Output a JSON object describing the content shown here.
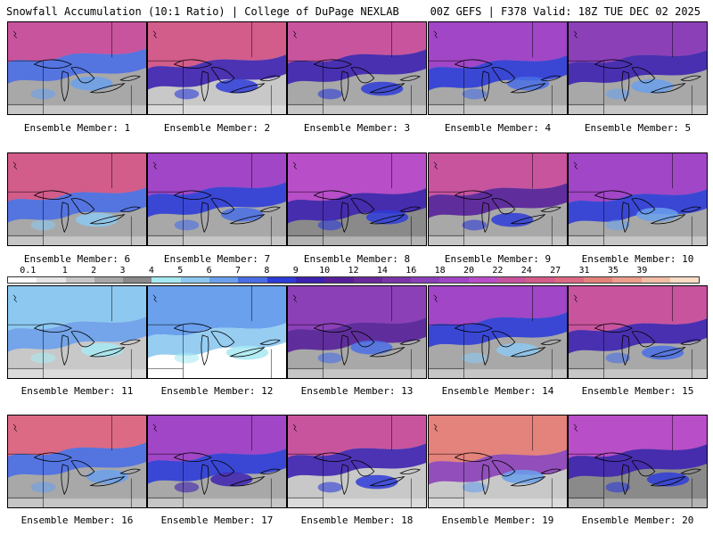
{
  "header": {
    "title": "Snowfall Accumulation (10:1 Ratio) | College of DuPage NEXLAB",
    "run_info": "00Z GEFS | F378 Valid: 18Z TUE DEC 02 2025"
  },
  "colors": {
    "snow_scale": [
      "#ffffff",
      "#e6e6e6",
      "#c8c8c8",
      "#a8a8a8",
      "#8a8a8a",
      "#a6e9f2",
      "#8cc8f0",
      "#6aa0ec",
      "#4a6ee6",
      "#2e3cd8",
      "#3d22b0",
      "#57209a",
      "#6a2a9c",
      "#7a36a8",
      "#8c40b8",
      "#a046c6",
      "#b84ec8",
      "#c8549e",
      "#d25c8a",
      "#dc6a84",
      "#e4827c",
      "#ec9e8c",
      "#f2bea6",
      "#f8dcc6"
    ]
  },
  "colorbar": {
    "tick_labels": [
      "0.1",
      "1",
      "2",
      "3",
      "4",
      "5",
      "6",
      "7",
      "8",
      "9",
      "10",
      "12",
      "14",
      "16",
      "18",
      "20",
      "22",
      "24",
      "27",
      "31",
      "35",
      "39"
    ]
  },
  "members": [
    {
      "label": "Ensemble Member: 1",
      "base_color": "#a8a8a8",
      "north_color": "#c8549e",
      "mid_color": "#4a6ee6",
      "lake_color": "#6aa0ec"
    },
    {
      "label": "Ensemble Member: 2",
      "base_color": "#c8c8c8",
      "north_color": "#d25c8a",
      "mid_color": "#3d22b0",
      "lake_color": "#2e3cd8"
    },
    {
      "label": "Ensemble Member: 3",
      "base_color": "#a8a8a8",
      "north_color": "#c8549e",
      "mid_color": "#3d22b0",
      "lake_color": "#2e3cd8"
    },
    {
      "label": "Ensemble Member: 4",
      "base_color": "#a8a8a8",
      "north_color": "#a046c6",
      "mid_color": "#2e3cd8",
      "lake_color": "#4a6ee6"
    },
    {
      "label": "Ensemble Member: 5",
      "base_color": "#a8a8a8",
      "north_color": "#8c40b8",
      "mid_color": "#3d22b0",
      "lake_color": "#6aa0ec"
    },
    {
      "label": "Ensemble Member: 6",
      "base_color": "#a8a8a8",
      "north_color": "#d25c8a",
      "mid_color": "#4a6ee6",
      "lake_color": "#8cc8f0"
    },
    {
      "label": "Ensemble Member: 7",
      "base_color": "#a8a8a8",
      "north_color": "#a046c6",
      "mid_color": "#2e3cd8",
      "lake_color": "#4a6ee6"
    },
    {
      "label": "Ensemble Member: 8",
      "base_color": "#8a8a8a",
      "north_color": "#b84ec8",
      "mid_color": "#3d22b0",
      "lake_color": "#2e3cd8"
    },
    {
      "label": "Ensemble Member: 9",
      "base_color": "#a8a8a8",
      "north_color": "#c8549e",
      "mid_color": "#57209a",
      "lake_color": "#2e3cd8"
    },
    {
      "label": "Ensemble Member: 10",
      "base_color": "#a8a8a8",
      "north_color": "#a046c6",
      "mid_color": "#2e3cd8",
      "lake_color": "#6aa0ec"
    },
    {
      "label": "Ensemble Member: 11",
      "base_color": "#c8c8c8",
      "north_color": "#8cc8f0",
      "mid_color": "#6aa0ec",
      "lake_color": "#a6e9f2"
    },
    {
      "label": "Ensemble Member: 12",
      "base_color": "#ffffff",
      "north_color": "#6aa0ec",
      "mid_color": "#8cc8f0",
      "lake_color": "#a6e9f2"
    },
    {
      "label": "Ensemble Member: 13",
      "base_color": "#a8a8a8",
      "north_color": "#8c40b8",
      "mid_color": "#57209a",
      "lake_color": "#4a6ee6"
    },
    {
      "label": "Ensemble Member: 14",
      "base_color": "#a8a8a8",
      "north_color": "#a046c6",
      "mid_color": "#2e3cd8",
      "lake_color": "#8cc8f0"
    },
    {
      "label": "Ensemble Member: 15",
      "base_color": "#a8a8a8",
      "north_color": "#c8549e",
      "mid_color": "#3d22b0",
      "lake_color": "#4a6ee6"
    },
    {
      "label": "Ensemble Member: 16",
      "base_color": "#a8a8a8",
      "north_color": "#dc6a84",
      "mid_color": "#4a6ee6",
      "lake_color": "#6aa0ec"
    },
    {
      "label": "Ensemble Member: 17",
      "base_color": "#a8a8a8",
      "north_color": "#a046c6",
      "mid_color": "#2e3cd8",
      "lake_color": "#3d22b0"
    },
    {
      "label": "Ensemble Member: 18",
      "base_color": "#c8c8c8",
      "north_color": "#c8549e",
      "mid_color": "#3d22b0",
      "lake_color": "#2e3cd8"
    },
    {
      "label": "Ensemble Member: 19",
      "base_color": "#c8c8c8",
      "north_color": "#e4827c",
      "mid_color": "#8c40b8",
      "lake_color": "#6aa0ec"
    },
    {
      "label": "Ensemble Member: 20",
      "base_color": "#8a8a8a",
      "north_color": "#b84ec8",
      "mid_color": "#3d22b0",
      "lake_color": "#2e3cd8"
    }
  ]
}
